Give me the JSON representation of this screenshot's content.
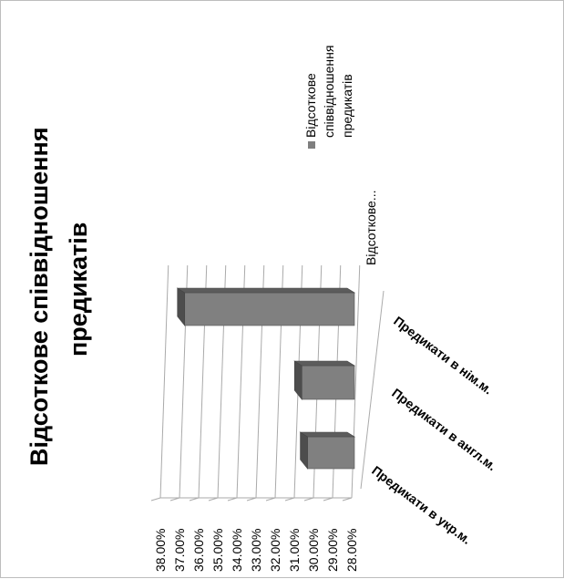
{
  "chart_data": {
    "type": "bar",
    "orientation": "rotated-90-ccw",
    "title": "Відсоткове співвідношення предикатів",
    "title_lines": [
      "Відсоткове співвідношення",
      "предикатів"
    ],
    "categories": [
      "Предикати в укр.м.",
      "Предикати в англ.м.",
      "Предикати в нім.м."
    ],
    "series": [
      {
        "name": "Відсоткове співвідношення предикатів",
        "values": [
          0.3126,
          0.3156,
          0.3768
        ]
      }
    ],
    "series_axis_label": "Відсоткове...",
    "y_ticks": [
      "28.00%",
      "29.00%",
      "30.00%",
      "31.00%",
      "32.00%",
      "33.00%",
      "34.00%",
      "35.00%",
      "36.00%",
      "37.00%",
      "38.00%"
    ],
    "ylim": [
      0.28,
      0.38
    ],
    "legend": {
      "position": "right",
      "lines": [
        "Відсоткове",
        "співвідношення",
        "предикатів"
      ],
      "color": "#7f7f7f"
    },
    "colors": {
      "bar": "#808080",
      "bar_top": "#4d4d4d",
      "bar_side": "#5c5c5c",
      "grid": "#aaaaaa"
    },
    "grid": true
  }
}
